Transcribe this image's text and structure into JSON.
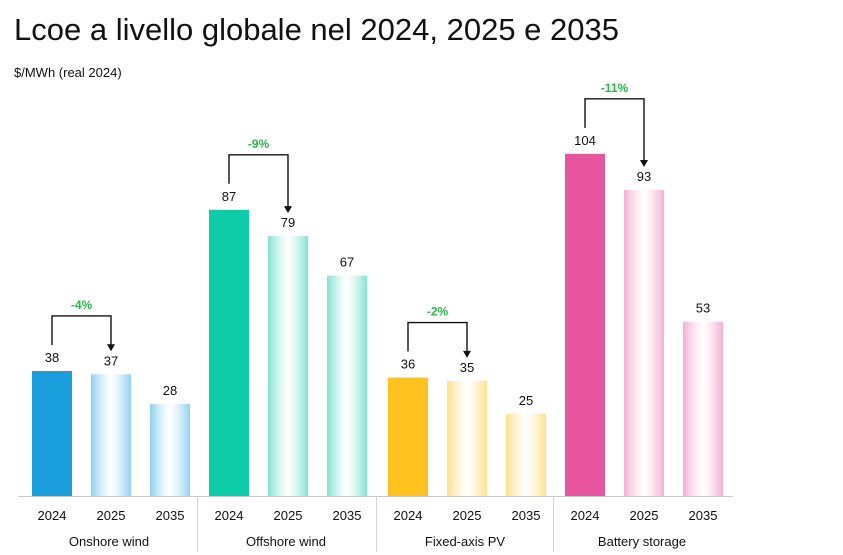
{
  "title": "Lcoe a livello globale nel 2024, 2025 e 2035",
  "subtitle": "$/MWh (real 2024)",
  "chart_data": {
    "type": "bar",
    "title": "Lcoe a livello globale nel 2024, 2025 e 2035",
    "ylabel": "$/MWh (real 2024)",
    "ylim": [
      0,
      110
    ],
    "grid": false,
    "x_labels": [
      "2024",
      "2025",
      "2035"
    ],
    "groups": [
      {
        "name": "Onshore wind",
        "values": [
          38,
          37,
          28
        ],
        "change": "-4%",
        "colors": [
          "#1a9fdc",
          "#8fd0f0",
          "#8fd0f0"
        ]
      },
      {
        "name": "Offshore wind",
        "values": [
          87,
          79,
          67
        ],
        "change": "-9%",
        "colors": [
          "#0fcca8",
          "#7fe3cf",
          "#7fe3cf"
        ]
      },
      {
        "name": "Fixed-axis PV",
        "values": [
          36,
          35,
          25
        ],
        "change": "-2%",
        "colors": [
          "#ffc21f",
          "#ffe08a",
          "#ffe08a"
        ]
      },
      {
        "name": "Battery storage",
        "values": [
          104,
          93,
          53
        ],
        "change": "-11%",
        "colors": [
          "#e8559f",
          "#f4aed0",
          "#f4aed0"
        ]
      }
    ]
  }
}
